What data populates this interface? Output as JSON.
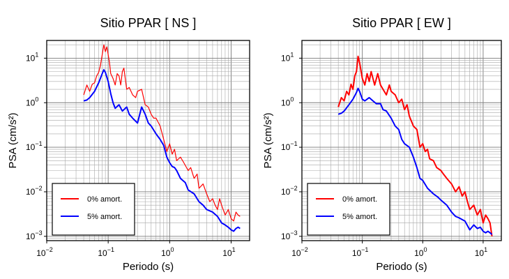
{
  "chart_data": [
    {
      "type": "line",
      "title": "Sitio PPAR [ NS ]",
      "xlabel": "Periodo (s)",
      "ylabel": "PSA (cm/s²)",
      "xscale": "log",
      "yscale": "log",
      "xlim": [
        0.01,
        20
      ],
      "ylim": [
        0.0008,
        25
      ],
      "grid": true,
      "legend_position": "bottom-left",
      "x_ticks": [
        {
          "base": "10",
          "exp": "−2"
        },
        {
          "base": "10",
          "exp": "−1"
        },
        {
          "base": "10",
          "exp": "0"
        },
        {
          "base": "10",
          "exp": "1"
        }
      ],
      "y_ticks": [
        {
          "base": "10",
          "exp": "−3"
        },
        {
          "base": "10",
          "exp": "−2"
        },
        {
          "base": "10",
          "exp": "−1"
        },
        {
          "base": "10",
          "exp": "0"
        },
        {
          "base": "10",
          "exp": "1"
        }
      ],
      "series": [
        {
          "name": "0% amort.",
          "color": "#ff0000",
          "points": [
            [
              0.04,
              1.5
            ],
            [
              0.045,
              2.5
            ],
            [
              0.05,
              1.8
            ],
            [
              0.055,
              2.6
            ],
            [
              0.06,
              2.8
            ],
            [
              0.065,
              4.0
            ],
            [
              0.07,
              4.8
            ],
            [
              0.075,
              7.0
            ],
            [
              0.08,
              12.0
            ],
            [
              0.085,
              20.0
            ],
            [
              0.09,
              14.0
            ],
            [
              0.095,
              18.0
            ],
            [
              0.1,
              12.0
            ],
            [
              0.105,
              8.0
            ],
            [
              0.11,
              4.5
            ],
            [
              0.12,
              3.5
            ],
            [
              0.13,
              2.5
            ],
            [
              0.14,
              4.5
            ],
            [
              0.15,
              4.0
            ],
            [
              0.16,
              2.5
            ],
            [
              0.17,
              5.0
            ],
            [
              0.18,
              6.0
            ],
            [
              0.2,
              2.0
            ],
            [
              0.22,
              2.2
            ],
            [
              0.25,
              1.5
            ],
            [
              0.28,
              1.3
            ],
            [
              0.3,
              1.8
            ],
            [
              0.35,
              2.0
            ],
            [
              0.4,
              0.9
            ],
            [
              0.45,
              0.8
            ],
            [
              0.5,
              0.55
            ],
            [
              0.55,
              0.45
            ],
            [
              0.6,
              0.45
            ],
            [
              0.7,
              0.3
            ],
            [
              0.8,
              0.15
            ],
            [
              0.9,
              0.08
            ],
            [
              1.0,
              0.12
            ],
            [
              1.1,
              0.07
            ],
            [
              1.2,
              0.09
            ],
            [
              1.3,
              0.05
            ],
            [
              1.5,
              0.06
            ],
            [
              1.7,
              0.045
            ],
            [
              2.0,
              0.03
            ],
            [
              2.2,
              0.035
            ],
            [
              2.5,
              0.02
            ],
            [
              2.8,
              0.025
            ],
            [
              3.0,
              0.012
            ],
            [
              3.5,
              0.015
            ],
            [
              4.0,
              0.009
            ],
            [
              4.5,
              0.006
            ],
            [
              5.0,
              0.007
            ],
            [
              5.5,
              0.005
            ],
            [
              6.0,
              0.004
            ],
            [
              6.5,
              0.007
            ],
            [
              7.0,
              0.005
            ],
            [
              8.0,
              0.003
            ],
            [
              9.0,
              0.004
            ],
            [
              10.0,
              0.0025
            ],
            [
              11.0,
              0.0022
            ],
            [
              12.0,
              0.0035
            ],
            [
              13.0,
              0.003
            ],
            [
              14.0,
              0.0028
            ]
          ]
        },
        {
          "name": "5% amort.",
          "color": "#0000ff",
          "points": [
            [
              0.04,
              1.1
            ],
            [
              0.045,
              1.15
            ],
            [
              0.05,
              1.3
            ],
            [
              0.06,
              1.8
            ],
            [
              0.07,
              2.8
            ],
            [
              0.08,
              4.5
            ],
            [
              0.085,
              5.5
            ],
            [
              0.09,
              4.8
            ],
            [
              0.1,
              3.0
            ],
            [
              0.11,
              1.6
            ],
            [
              0.12,
              1.0
            ],
            [
              0.13,
              0.75
            ],
            [
              0.15,
              0.9
            ],
            [
              0.17,
              0.65
            ],
            [
              0.2,
              0.8
            ],
            [
              0.22,
              0.55
            ],
            [
              0.25,
              0.45
            ],
            [
              0.3,
              0.35
            ],
            [
              0.35,
              0.8
            ],
            [
              0.4,
              0.55
            ],
            [
              0.45,
              0.35
            ],
            [
              0.5,
              0.3
            ],
            [
              0.6,
              0.2
            ],
            [
              0.7,
              0.15
            ],
            [
              0.8,
              0.11
            ],
            [
              0.9,
              0.06
            ],
            [
              1.0,
              0.045
            ],
            [
              1.1,
              0.037
            ],
            [
              1.2,
              0.035
            ],
            [
              1.3,
              0.03
            ],
            [
              1.5,
              0.02
            ],
            [
              1.8,
              0.016
            ],
            [
              2.0,
              0.011
            ],
            [
              2.5,
              0.009
            ],
            [
              3.0,
              0.006
            ],
            [
              3.5,
              0.005
            ],
            [
              4.0,
              0.004
            ],
            [
              5.0,
              0.0035
            ],
            [
              6.0,
              0.0028
            ],
            [
              7.0,
              0.002
            ],
            [
              8.0,
              0.0018
            ],
            [
              9.0,
              0.0016
            ],
            [
              10.0,
              0.0014
            ],
            [
              11.0,
              0.0013
            ],
            [
              12.0,
              0.0015
            ],
            [
              13.0,
              0.0016
            ],
            [
              14.0,
              0.0015
            ]
          ]
        }
      ]
    },
    {
      "type": "line",
      "title": "Sitio PPAR [ EW ]",
      "xlabel": "Periodo (s)",
      "ylabel": "PSA (cm/s²)",
      "xscale": "log",
      "yscale": "log",
      "xlim": [
        0.01,
        20
      ],
      "ylim": [
        0.0008,
        25
      ],
      "grid": true,
      "legend_position": "bottom-left",
      "x_ticks": [
        {
          "base": "10",
          "exp": "−2"
        },
        {
          "base": "10",
          "exp": "−1"
        },
        {
          "base": "10",
          "exp": "0"
        },
        {
          "base": "10",
          "exp": "1"
        }
      ],
      "y_ticks": [
        {
          "base": "10",
          "exp": "−3"
        },
        {
          "base": "10",
          "exp": "−2"
        },
        {
          "base": "10",
          "exp": "−1"
        },
        {
          "base": "10",
          "exp": "0"
        },
        {
          "base": "10",
          "exp": "1"
        }
      ],
      "series": [
        {
          "name": "0% amort.",
          "color": "#ff0000",
          "points": [
            [
              0.04,
              0.8
            ],
            [
              0.045,
              1.3
            ],
            [
              0.05,
              1.1
            ],
            [
              0.055,
              1.8
            ],
            [
              0.06,
              1.5
            ],
            [
              0.065,
              2.6
            ],
            [
              0.07,
              2.0
            ],
            [
              0.075,
              4.0
            ],
            [
              0.08,
              5.0
            ],
            [
              0.085,
              11.0
            ],
            [
              0.09,
              8.0
            ],
            [
              0.1,
              3.5
            ],
            [
              0.11,
              2.5
            ],
            [
              0.12,
              4.5
            ],
            [
              0.13,
              3.0
            ],
            [
              0.14,
              5.0
            ],
            [
              0.15,
              3.5
            ],
            [
              0.16,
              2.5
            ],
            [
              0.18,
              4.5
            ],
            [
              0.2,
              2.5
            ],
            [
              0.22,
              2.0
            ],
            [
              0.25,
              1.5
            ],
            [
              0.28,
              2.5
            ],
            [
              0.3,
              1.8
            ],
            [
              0.35,
              1.5
            ],
            [
              0.4,
              1.0
            ],
            [
              0.45,
              1.2
            ],
            [
              0.5,
              0.7
            ],
            [
              0.55,
              0.9
            ],
            [
              0.6,
              0.5
            ],
            [
              0.7,
              0.3
            ],
            [
              0.8,
              0.25
            ],
            [
              0.9,
              0.1
            ],
            [
              1.0,
              0.12
            ],
            [
              1.1,
              0.08
            ],
            [
              1.2,
              0.09
            ],
            [
              1.3,
              0.055
            ],
            [
              1.5,
              0.05
            ],
            [
              1.7,
              0.035
            ],
            [
              2.0,
              0.03
            ],
            [
              2.2,
              0.025
            ],
            [
              2.5,
              0.02
            ],
            [
              3.0,
              0.015
            ],
            [
              3.5,
              0.01
            ],
            [
              4.0,
              0.013
            ],
            [
              4.5,
              0.008
            ],
            [
              5.0,
              0.01
            ],
            [
              5.5,
              0.006
            ],
            [
              6.0,
              0.004
            ],
            [
              7.0,
              0.005
            ],
            [
              8.0,
              0.003
            ],
            [
              9.0,
              0.004
            ],
            [
              10.0,
              0.002
            ],
            [
              11.0,
              0.003
            ],
            [
              12.0,
              0.0025
            ],
            [
              13.0,
              0.002
            ],
            [
              14.0,
              0.001
            ]
          ]
        },
        {
          "name": "5% amort.",
          "color": "#0000ff",
          "points": [
            [
              0.04,
              0.55
            ],
            [
              0.045,
              0.58
            ],
            [
              0.05,
              0.65
            ],
            [
              0.06,
              0.9
            ],
            [
              0.07,
              1.2
            ],
            [
              0.08,
              1.7
            ],
            [
              0.085,
              2.1
            ],
            [
              0.09,
              1.8
            ],
            [
              0.1,
              1.2
            ],
            [
              0.11,
              1.1
            ],
            [
              0.12,
              1.2
            ],
            [
              0.13,
              1.3
            ],
            [
              0.15,
              1.1
            ],
            [
              0.17,
              0.95
            ],
            [
              0.2,
              0.95
            ],
            [
              0.22,
              0.7
            ],
            [
              0.25,
              0.65
            ],
            [
              0.3,
              0.45
            ],
            [
              0.35,
              0.3
            ],
            [
              0.4,
              0.25
            ],
            [
              0.45,
              0.15
            ],
            [
              0.5,
              0.12
            ],
            [
              0.6,
              0.1
            ],
            [
              0.7,
              0.06
            ],
            [
              0.8,
              0.035
            ],
            [
              0.9,
              0.02
            ],
            [
              1.0,
              0.018
            ],
            [
              1.2,
              0.012
            ],
            [
              1.5,
              0.009
            ],
            [
              1.8,
              0.0075
            ],
            [
              2.0,
              0.0065
            ],
            [
              2.5,
              0.005
            ],
            [
              3.0,
              0.0035
            ],
            [
              3.5,
              0.0028
            ],
            [
              4.0,
              0.0026
            ],
            [
              5.0,
              0.0022
            ],
            [
              6.0,
              0.0014
            ],
            [
              7.0,
              0.0018
            ],
            [
              8.0,
              0.0015
            ],
            [
              9.0,
              0.0016
            ],
            [
              10.0,
              0.0013
            ],
            [
              11.0,
              0.0012
            ],
            [
              12.0,
              0.0013
            ],
            [
              13.0,
              0.0012
            ],
            [
              14.0,
              0.0011
            ]
          ]
        }
      ]
    }
  ]
}
